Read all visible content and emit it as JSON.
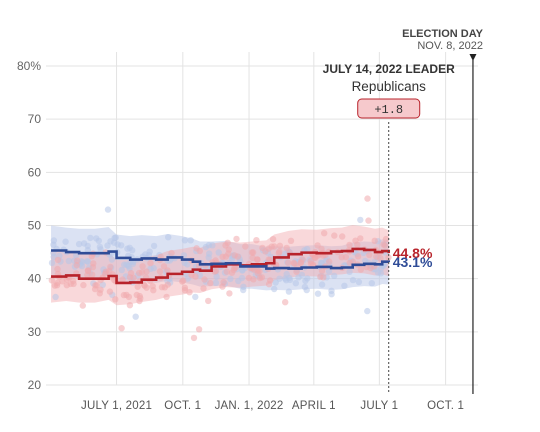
{
  "chart_data": {
    "type": "line",
    "title": "",
    "xlabel": "",
    "ylabel": "",
    "ylim": [
      20,
      80
    ],
    "y_ticks": [
      20,
      30,
      40,
      50,
      60,
      70,
      80
    ],
    "y_tick_labels": [
      "20",
      "30",
      "40",
      "50",
      "60",
      "70",
      "80%"
    ],
    "x_range": [
      "2021-03-25",
      "2022-11-15"
    ],
    "x_ticks": [
      {
        "date": "2021-07-01",
        "label": "JULY 1, 2021"
      },
      {
        "date": "2021-10-01",
        "label": "OCT. 1"
      },
      {
        "date": "2022-01-01",
        "label": "JAN. 1, 2022"
      },
      {
        "date": "2022-04-01",
        "label": "APRIL 1"
      },
      {
        "date": "2022-07-01",
        "label": "JULY 1"
      },
      {
        "date": "2022-10-01",
        "label": "OCT. 1"
      }
    ],
    "grid": true,
    "election_day": {
      "date": "2022-11-08",
      "title": "ELECTION DAY",
      "subtitle": "NOV. 8, 2022"
    },
    "current_date": "2022-07-14",
    "leader_callout": {
      "title": "JULY 14, 2022 LEADER",
      "party": "Republicans",
      "margin": "+1.8"
    },
    "series": [
      {
        "color": "#b8232b",
        "band_color": "#f1a9ad",
        "end_label": "44.8%",
        "x": [
          "2021-04-01",
          "2021-04-22",
          "2021-05-10",
          "2021-06-01",
          "2021-06-20",
          "2021-07-01",
          "2021-07-20",
          "2021-08-05",
          "2021-08-25",
          "2021-09-10",
          "2021-09-30",
          "2021-10-15",
          "2021-10-25",
          "2021-11-10",
          "2021-11-30",
          "2021-12-20",
          "2022-01-05",
          "2022-01-25",
          "2022-02-05",
          "2022-02-25",
          "2022-03-15",
          "2022-04-05",
          "2022-04-25",
          "2022-05-10",
          "2022-05-25",
          "2022-06-10",
          "2022-06-25",
          "2022-07-05",
          "2022-07-14"
        ],
        "values": [
          40.4,
          40.6,
          40.0,
          40.0,
          40.5,
          39.2,
          39.3,
          39.8,
          40.2,
          40.9,
          41.3,
          41.7,
          41.5,
          42.3,
          42.7,
          42.5,
          42.7,
          42.9,
          44.0,
          44.6,
          44.9,
          44.8,
          45.1,
          45.2,
          45.6,
          45.4,
          45.0,
          45.2,
          44.8
        ],
        "band_low": [
          35.5,
          35.8,
          35.5,
          35.5,
          36.0,
          35.0,
          35.2,
          35.6,
          36.0,
          36.6,
          37.0,
          37.4,
          37.3,
          38.0,
          38.4,
          38.3,
          38.5,
          38.7,
          39.7,
          40.2,
          40.5,
          40.4,
          40.7,
          40.8,
          41.1,
          41.0,
          40.6,
          40.8,
          40.5
        ],
        "band_high": [
          45.3,
          45.4,
          44.6,
          44.6,
          45.0,
          43.5,
          43.5,
          44.0,
          44.4,
          45.2,
          45.6,
          46.0,
          45.8,
          46.6,
          47.0,
          46.8,
          47.0,
          47.2,
          48.3,
          49.0,
          49.3,
          49.2,
          49.5,
          49.6,
          50.1,
          49.8,
          49.4,
          49.6,
          49.1
        ]
      },
      {
        "color": "#2f4c97",
        "band_color": "#b7c6e8",
        "end_label": "43.1%",
        "x": [
          "2021-04-01",
          "2021-04-22",
          "2021-05-10",
          "2021-06-01",
          "2021-06-20",
          "2021-07-01",
          "2021-07-20",
          "2021-08-05",
          "2021-08-25",
          "2021-09-10",
          "2021-09-30",
          "2021-10-15",
          "2021-10-25",
          "2021-11-10",
          "2021-11-30",
          "2021-12-20",
          "2022-01-05",
          "2022-01-25",
          "2022-02-05",
          "2022-02-25",
          "2022-03-15",
          "2022-04-05",
          "2022-04-25",
          "2022-05-10",
          "2022-05-25",
          "2022-06-10",
          "2022-06-25",
          "2022-07-05",
          "2022-07-14"
        ],
        "values": [
          45.3,
          45.0,
          44.8,
          44.8,
          45.1,
          43.9,
          43.6,
          43.8,
          43.6,
          44.0,
          43.6,
          43.2,
          42.7,
          42.8,
          42.9,
          42.3,
          42.3,
          41.9,
          42.0,
          41.9,
          42.1,
          42.2,
          42.0,
          42.1,
          42.6,
          42.8,
          42.7,
          43.2,
          43.1
        ],
        "band_low": [
          40.5,
          40.3,
          40.1,
          40.1,
          40.5,
          39.5,
          39.2,
          39.4,
          39.2,
          39.6,
          39.3,
          38.9,
          38.5,
          38.6,
          38.7,
          38.1,
          38.1,
          37.8,
          37.9,
          37.8,
          38.0,
          38.1,
          37.9,
          38.0,
          38.4,
          38.6,
          38.5,
          39.0,
          38.9
        ],
        "band_high": [
          50.0,
          49.6,
          49.4,
          49.4,
          49.7,
          48.3,
          48.0,
          48.2,
          48.0,
          48.4,
          48.0,
          47.5,
          47.0,
          47.0,
          47.1,
          46.5,
          46.5,
          46.0,
          46.1,
          46.0,
          46.2,
          46.3,
          46.1,
          46.2,
          46.8,
          47.0,
          46.9,
          47.4,
          47.3
        ]
      }
    ]
  }
}
